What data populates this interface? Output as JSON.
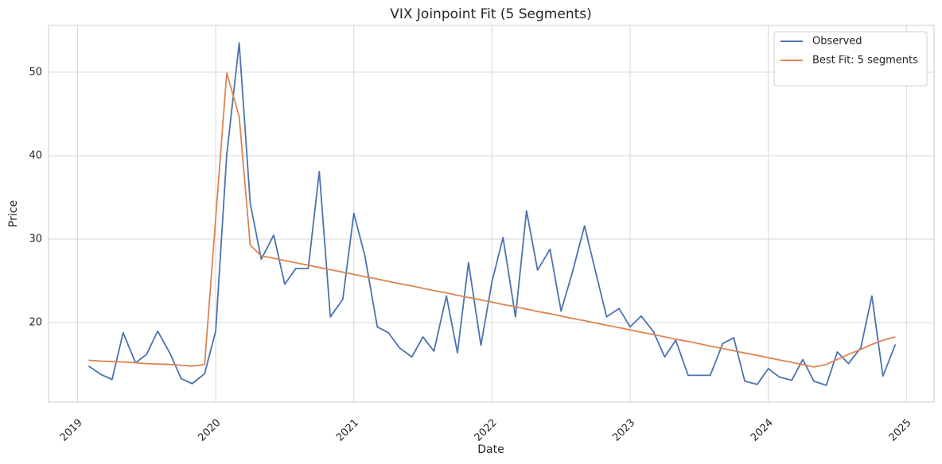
{
  "chart_data": {
    "type": "line",
    "title": "VIX Joinpoint Fit (5 Segments)",
    "x_label": "Date",
    "y_label": "Price",
    "x": [
      2019.08,
      2019.17,
      2019.25,
      2019.33,
      2019.42,
      2019.5,
      2019.58,
      2019.67,
      2019.75,
      2019.83,
      2019.92,
      2020.0,
      2020.08,
      2020.17,
      2020.25,
      2020.33,
      2020.42,
      2020.5,
      2020.58,
      2020.67,
      2020.75,
      2020.83,
      2020.92,
      2021.0,
      2021.08,
      2021.17,
      2021.25,
      2021.33,
      2021.42,
      2021.5,
      2021.58,
      2021.67,
      2021.75,
      2021.83,
      2021.92,
      2022.0,
      2022.08,
      2022.17,
      2022.25,
      2022.33,
      2022.42,
      2022.5,
      2022.58,
      2022.67,
      2022.75,
      2022.83,
      2022.92,
      2023.0,
      2023.08,
      2023.17,
      2023.25,
      2023.33,
      2023.42,
      2023.5,
      2023.58,
      2023.67,
      2023.75,
      2023.83,
      2023.92,
      2024.0,
      2024.08,
      2024.17,
      2024.25,
      2024.33,
      2024.42,
      2024.5,
      2024.58,
      2024.67,
      2024.75,
      2024.83,
      2024.92
    ],
    "series": [
      {
        "name": "Observed",
        "color": "#4c72b0",
        "values": [
          14.8,
          13.8,
          13.2,
          18.8,
          15.2,
          16.2,
          19.0,
          16.3,
          13.3,
          12.7,
          13.9,
          19.0,
          40.1,
          53.5,
          34.3,
          27.6,
          30.5,
          24.6,
          26.5,
          26.5,
          38.1,
          20.7,
          22.8,
          33.1,
          28.0,
          19.5,
          18.8,
          17.0,
          15.9,
          18.3,
          16.6,
          23.2,
          16.4,
          27.2,
          17.3,
          24.9,
          30.2,
          20.7,
          33.4,
          26.3,
          28.8,
          21.4,
          25.9,
          31.6,
          26.1,
          20.7,
          21.7,
          19.5,
          20.8,
          18.9,
          15.9,
          17.9,
          13.7,
          13.7,
          13.7,
          17.5,
          18.2,
          13.0,
          12.6,
          14.5,
          13.5,
          13.1,
          15.6,
          13.0,
          12.5,
          16.5,
          15.1,
          17.0,
          23.2,
          13.6,
          17.4
        ]
      },
      {
        "name": "Best Fit: 5 segments",
        "color": "#dd8452",
        "values": [
          15.5,
          15.4,
          15.35,
          15.3,
          15.2,
          15.1,
          15.05,
          15.0,
          14.9,
          14.8,
          15.0,
          32.5,
          49.9,
          44.7,
          29.3,
          28.0,
          27.72,
          27.45,
          27.17,
          26.89,
          26.61,
          26.34,
          26.06,
          25.78,
          25.51,
          25.23,
          24.95,
          24.68,
          24.4,
          24.12,
          23.84,
          23.57,
          23.29,
          23.01,
          22.74,
          22.46,
          22.18,
          21.91,
          21.63,
          21.35,
          21.08,
          20.8,
          20.52,
          20.24,
          19.97,
          19.69,
          19.41,
          19.14,
          18.86,
          18.58,
          18.31,
          18.03,
          17.75,
          17.48,
          17.2,
          16.92,
          16.64,
          16.37,
          16.09,
          15.81,
          15.54,
          15.26,
          14.98,
          14.7,
          15.0,
          15.6,
          16.2,
          16.8,
          17.4,
          17.9,
          18.3
        ]
      }
    ],
    "xlim": [
      2018.79,
      2025.2
    ],
    "xticks": [
      2019,
      2020,
      2021,
      2022,
      2023,
      2024,
      2025
    ],
    "ylim": [
      10.5,
      55.6
    ],
    "yticks": [
      20,
      30,
      40,
      50
    ],
    "grid": true,
    "legend": "upper right"
  }
}
